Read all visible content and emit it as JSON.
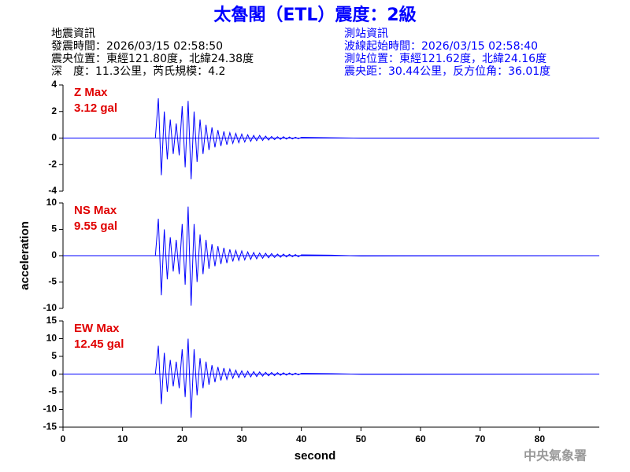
{
  "header": {
    "title": "太魯閣（ETL）震度：2級",
    "left": [
      "地震資訊",
      "發震時間：2026/03/15 02:58:50",
      "震央位置：東經121.80度，北緯24.38度",
      "深　度：11.3公里，芮氏規模：4.2"
    ],
    "right": [
      "測站資訊",
      "波線起始時間：2026/03/15 02:58:40",
      "測站位置：東經121.62度，北緯24.16度",
      "震央距：30.44公里，反方位角：36.01度"
    ],
    "footer": "中央氣象署"
  },
  "chart_data": [
    {
      "type": "line",
      "annotations": [
        "Z Max",
        "3.12 gal"
      ],
      "xlim": [
        0,
        90
      ],
      "ylim": [
        -4,
        4
      ],
      "yticks": [
        -4,
        -2,
        0,
        2,
        4
      ],
      "x": [
        0,
        15.5,
        16,
        16.5,
        17,
        17.5,
        18,
        18.5,
        19,
        19.5,
        20,
        20.5,
        21,
        21.5,
        22,
        22.5,
        23,
        23.5,
        24,
        24.5,
        25,
        25.5,
        26,
        26.5,
        27,
        27.5,
        28,
        28.5,
        29,
        29.5,
        30,
        30.5,
        31,
        31.5,
        32,
        32.5,
        33,
        33.5,
        34,
        34.5,
        35,
        35.5,
        36,
        36.5,
        37,
        37.5,
        38,
        38.5,
        39,
        39.5,
        40,
        45,
        50,
        89
      ],
      "series": [
        {
          "color": "#0000ff",
          "values": [
            0,
            0,
            3.0,
            -2.8,
            2.0,
            -1.6,
            1.4,
            -1.2,
            1.1,
            -1.3,
            2.4,
            -2.2,
            2.8,
            -3.1,
            2.0,
            -1.8,
            1.4,
            -1.2,
            1.0,
            -0.9,
            0.8,
            -0.7,
            0.6,
            -0.6,
            0.5,
            -0.5,
            0.4,
            -0.4,
            0.35,
            -0.35,
            0.3,
            -0.3,
            0.25,
            -0.25,
            0.2,
            -0.2,
            0.2,
            -0.18,
            0.15,
            -0.15,
            0.12,
            -0.12,
            0.1,
            -0.1,
            0.1,
            -0.08,
            0.08,
            -0.07,
            0.06,
            -0.05,
            0.05,
            0.02,
            -0.01,
            0
          ]
        }
      ]
    },
    {
      "type": "line",
      "annotations": [
        "NS Max",
        "9.55 gal"
      ],
      "ylabel": "acceleration",
      "xlim": [
        0,
        90
      ],
      "ylim": [
        -10,
        10
      ],
      "yticks": [
        -10,
        -5,
        0,
        5,
        10
      ],
      "x": [
        0,
        15.5,
        16,
        16.5,
        17,
        17.5,
        18,
        18.5,
        19,
        19.5,
        20,
        20.5,
        21,
        21.5,
        22,
        22.5,
        23,
        23.5,
        24,
        24.5,
        25,
        25.5,
        26,
        26.5,
        27,
        27.5,
        28,
        28.5,
        29,
        29.5,
        30,
        30.5,
        31,
        31.5,
        32,
        32.5,
        33,
        33.5,
        34,
        34.5,
        35,
        35.5,
        36,
        36.5,
        37,
        37.5,
        38,
        38.5,
        39,
        39.5,
        40,
        45,
        50,
        89
      ],
      "series": [
        {
          "color": "#0000ff",
          "values": [
            0,
            0,
            7.0,
            -7.5,
            5.0,
            -4.5,
            3.5,
            -3.0,
            3.0,
            -3.5,
            6.0,
            -5.5,
            9.3,
            -9.5,
            6.0,
            -5.0,
            4.0,
            -3.5,
            3.0,
            -2.5,
            2.2,
            -2.0,
            1.8,
            -1.6,
            1.5,
            -1.4,
            1.2,
            -1.1,
            1.0,
            -0.9,
            0.9,
            -0.8,
            0.7,
            -0.7,
            0.6,
            -0.6,
            0.5,
            -0.5,
            0.45,
            -0.4,
            0.4,
            -0.35,
            0.3,
            -0.3,
            0.3,
            -0.25,
            0.25,
            -0.2,
            0.2,
            -0.2,
            0.15,
            0.1,
            -0.05,
            0
          ]
        }
      ]
    },
    {
      "type": "line",
      "annotations": [
        "EW Max",
        "12.45 gal"
      ],
      "xlabel": "second",
      "xlim": [
        0,
        90
      ],
      "ylim": [
        -15,
        15
      ],
      "yticks": [
        -15,
        -10,
        -5,
        0,
        5,
        10,
        15
      ],
      "xticks": [
        0,
        10,
        20,
        30,
        40,
        50,
        60,
        70,
        80
      ],
      "x": [
        0,
        15.5,
        16,
        16.5,
        17,
        17.5,
        18,
        18.5,
        19,
        19.5,
        20,
        20.5,
        21,
        21.5,
        22,
        22.5,
        23,
        23.5,
        24,
        24.5,
        25,
        25.5,
        26,
        26.5,
        27,
        27.5,
        28,
        28.5,
        29,
        29.5,
        30,
        30.5,
        31,
        31.5,
        32,
        32.5,
        33,
        33.5,
        34,
        34.5,
        35,
        35.5,
        36,
        36.5,
        37,
        37.5,
        38,
        38.5,
        39,
        39.5,
        40,
        45,
        50,
        89
      ],
      "series": [
        {
          "color": "#0000ff",
          "values": [
            0,
            0,
            8.0,
            -8.5,
            6.0,
            -5.0,
            4.0,
            -3.5,
            3.5,
            -4.0,
            7.0,
            -6.5,
            10.0,
            -12.3,
            7.0,
            -6.0,
            4.5,
            -4.0,
            3.5,
            -3.0,
            2.5,
            -2.3,
            2.0,
            -1.8,
            1.7,
            -1.5,
            1.4,
            -1.2,
            1.1,
            -1.0,
            0.9,
            -0.9,
            0.8,
            -0.8,
            0.7,
            -0.7,
            0.6,
            -0.6,
            0.5,
            -0.5,
            0.45,
            -0.45,
            0.4,
            -0.35,
            0.35,
            -0.3,
            0.3,
            -0.25,
            0.25,
            -0.2,
            0.2,
            0.1,
            -0.05,
            0
          ]
        }
      ]
    }
  ]
}
